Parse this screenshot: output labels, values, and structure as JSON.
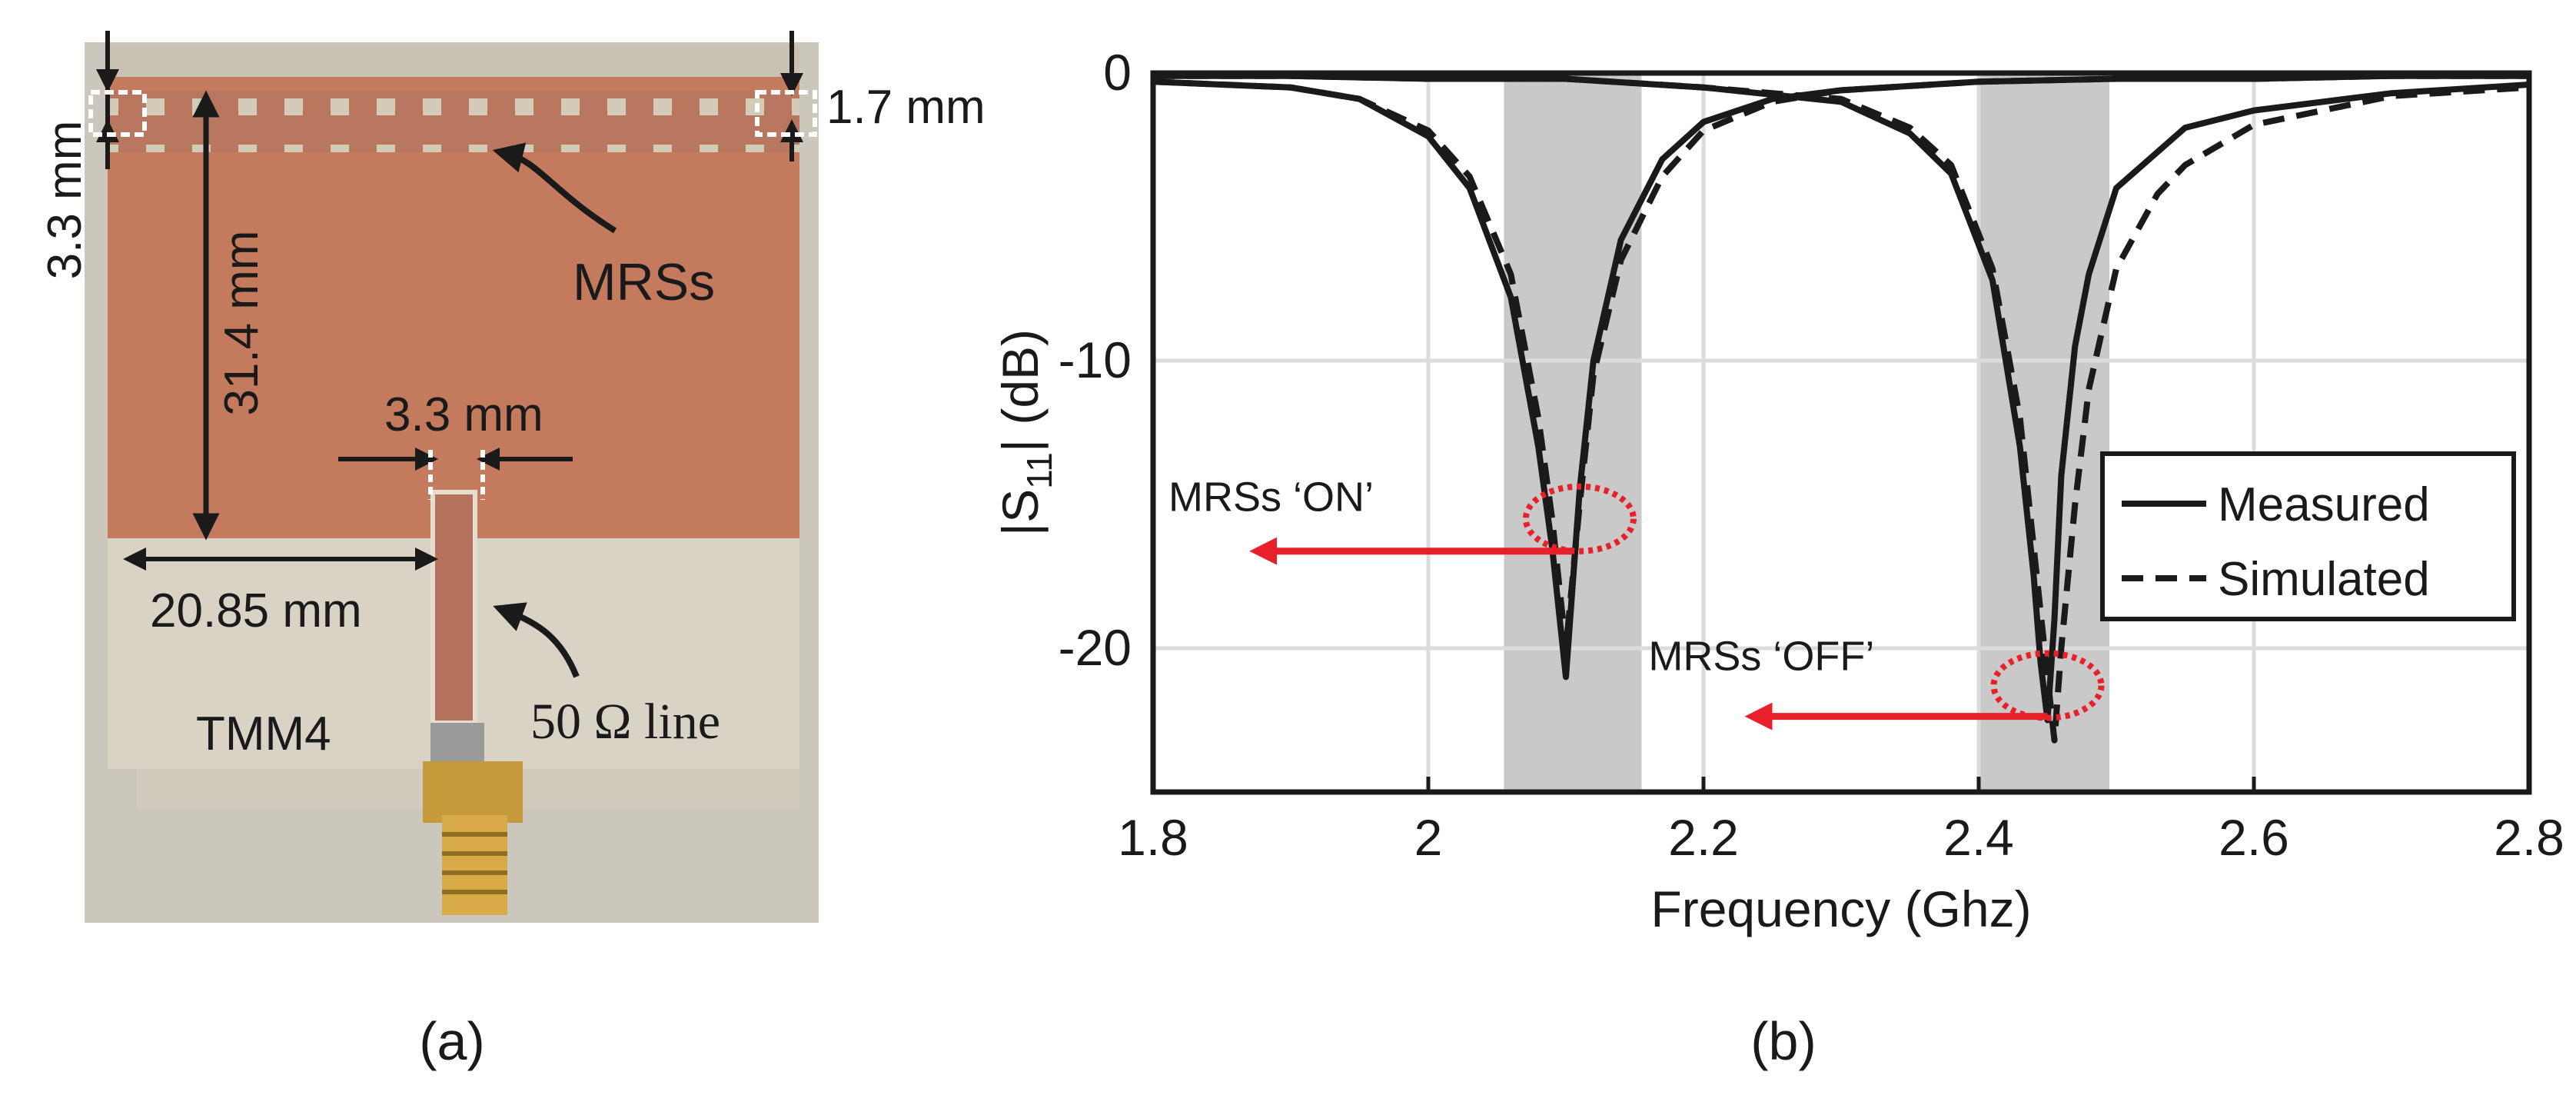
{
  "panel_a": {
    "caption": "(a)",
    "labels": {
      "left_top": "3.3 mm",
      "right_top": "1.7 mm",
      "height": "31.4 mm",
      "mrss": "MRSs",
      "gap": "3.3 mm",
      "width": "20.85 mm",
      "substrate": "TMM4",
      "line": "50 Ω line"
    }
  },
  "panel_b": {
    "caption": "(b)",
    "annot_on": "MRSs ‘ON’",
    "annot_off": "MRSs ‘OFF’"
  },
  "colors": {
    "measured": "#1a1a1a",
    "simulated": "#1a1a1a",
    "highlight_band": "#c9c9c9",
    "annotation": "#e8202a",
    "copper": "#c47a5c",
    "substrate": "#d9d3c6"
  },
  "chart_data": {
    "type": "line",
    "xlabel": "Frequency (Ghz)",
    "ylabel": "|S11| (dB)",
    "ylabel_main": "|S",
    "ylabel_sub": "11",
    "ylabel_tail": "| (dB)",
    "xlim": [
      1.8,
      2.8
    ],
    "ylim": [
      -25,
      0
    ],
    "xticks": [
      1.8,
      2.0,
      2.2,
      2.4,
      2.6,
      2.8
    ],
    "xtick_labels": [
      "1.8",
      "2",
      "2.2",
      "2.4",
      "2.6",
      "2.8"
    ],
    "yticks": [
      0,
      -10,
      -20
    ],
    "ytick_labels": [
      "0",
      "-10",
      "-20"
    ],
    "grid": true,
    "legend_position": "right",
    "shaded_bands": [
      [
        2.055,
        2.155
      ],
      [
        2.4,
        2.495
      ]
    ],
    "series": [
      {
        "name": "Measured",
        "style": "solid",
        "curves": [
          {
            "x": [
              1.8,
              1.9,
              1.95,
              2.0,
              2.03,
              2.06,
              2.08,
              2.09,
              2.1,
              2.11,
              2.12,
              2.14,
              2.17,
              2.2,
              2.25,
              2.3,
              2.4,
              2.5,
              2.6,
              2.7,
              2.8
            ],
            "y": [
              -0.3,
              -0.5,
              -0.9,
              -2.2,
              -4.0,
              -7.8,
              -13.0,
              -16.5,
              -21.0,
              -14.5,
              -10.0,
              -5.8,
              -3.0,
              -1.7,
              -0.9,
              -0.6,
              -0.3,
              -0.2,
              -0.2,
              -0.1,
              -0.1
            ]
          },
          {
            "x": [
              1.8,
              1.9,
              2.0,
              2.1,
              2.2,
              2.3,
              2.35,
              2.38,
              2.41,
              2.43,
              2.44,
              2.445,
              2.45,
              2.455,
              2.46,
              2.47,
              2.48,
              2.5,
              2.55,
              2.6,
              2.7,
              2.8
            ],
            "y": [
              -0.1,
              -0.1,
              -0.2,
              -0.2,
              -0.5,
              -1.0,
              -2.1,
              -3.5,
              -7.2,
              -13.0,
              -17.5,
              -20.5,
              -22.5,
              -19.0,
              -14.0,
              -9.5,
              -7.0,
              -4.0,
              -1.9,
              -1.3,
              -0.7,
              -0.4
            ]
          }
        ]
      },
      {
        "name": "Simulated",
        "style": "dashed",
        "curves": [
          {
            "x": [
              1.8,
              1.9,
              1.95,
              2.0,
              2.03,
              2.06,
              2.08,
              2.09,
              2.1,
              2.11,
              2.12,
              2.14,
              2.17,
              2.2,
              2.25,
              2.3,
              2.4,
              2.5,
              2.6,
              2.7,
              2.8
            ],
            "y": [
              -0.3,
              -0.5,
              -0.9,
              -2.0,
              -3.6,
              -7.0,
              -12.0,
              -15.5,
              -20.0,
              -15.0,
              -10.5,
              -6.5,
              -3.6,
              -2.0,
              -1.0,
              -0.6,
              -0.3,
              -0.2,
              -0.2,
              -0.1,
              -0.1
            ]
          },
          {
            "x": [
              1.8,
              1.9,
              2.0,
              2.1,
              2.2,
              2.3,
              2.35,
              2.38,
              2.41,
              2.43,
              2.44,
              2.45,
              2.455,
              2.46,
              2.47,
              2.48,
              2.5,
              2.53,
              2.55,
              2.6,
              2.7,
              2.8
            ],
            "y": [
              -0.1,
              -0.1,
              -0.2,
              -0.2,
              -0.5,
              -0.9,
              -1.9,
              -3.2,
              -6.8,
              -12.0,
              -16.5,
              -21.0,
              -23.2,
              -20.0,
              -15.0,
              -11.0,
              -6.8,
              -4.2,
              -3.2,
              -1.8,
              -0.8,
              -0.5
            ]
          }
        ]
      }
    ]
  }
}
